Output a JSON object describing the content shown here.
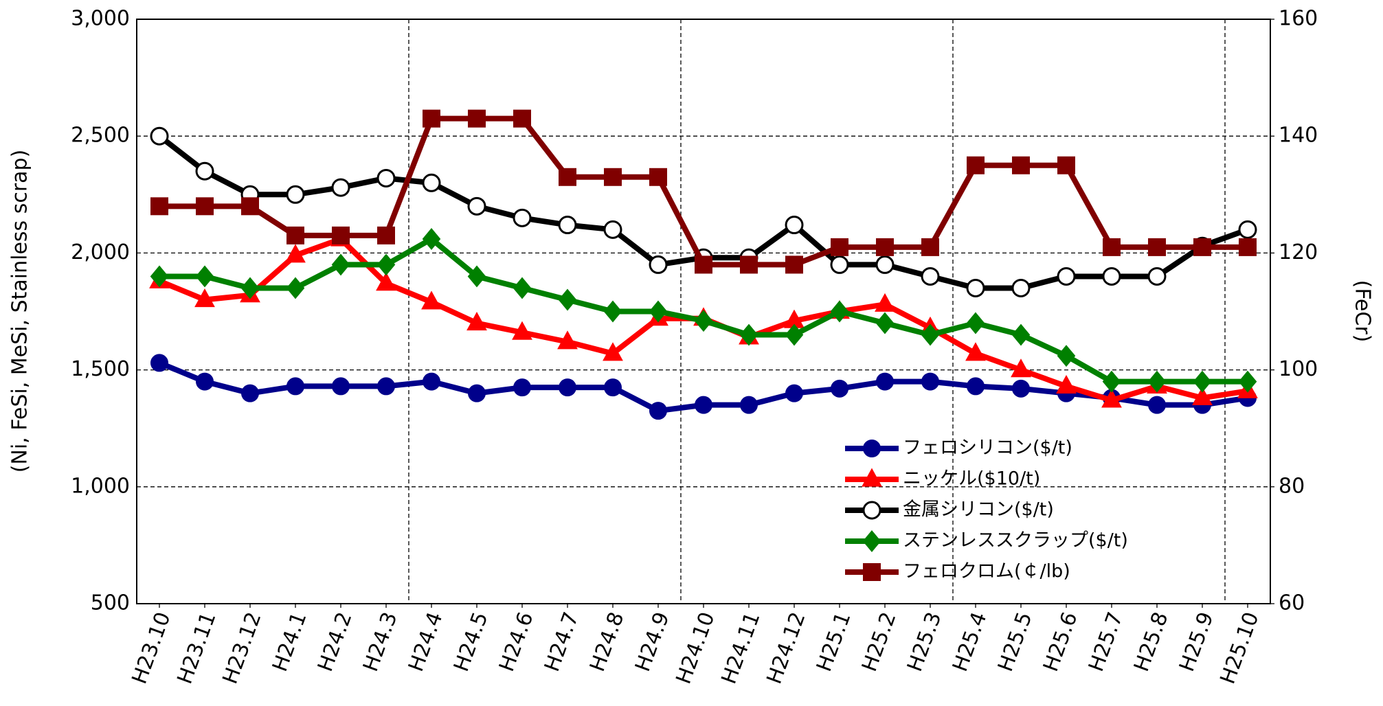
{
  "chart_data": {
    "type": "line",
    "y_label": "(Ni, FeSi, MeSi, Stainless scrap)",
    "y2_label": "(FeCr)",
    "categories": [
      "H23.10",
      "H23.11",
      "H23.12",
      "H24.1",
      "H24.2",
      "H24.3",
      "H24.4",
      "H24.5",
      "H24.6",
      "H24.7",
      "H24.8",
      "H24.9",
      "H24.10",
      "H24.11",
      "H24.12",
      "H25.1",
      "H25.2",
      "H25.3",
      "H25.4",
      "H25.5",
      "H25.6",
      "H25.7",
      "H25.8",
      "H25.9",
      "H25.10"
    ],
    "ylim": [
      500,
      3000
    ],
    "yticks": [
      500,
      {
        "value": 1000,
        "label": "1,000"
      },
      {
        "value": 1500,
        "label": "1,500"
      },
      {
        "value": 2000,
        "label": "2,000"
      },
      {
        "value": 2500,
        "label": "2,500"
      },
      {
        "value": 3000,
        "label": "3,000"
      }
    ],
    "y2lim": [
      60,
      160
    ],
    "y2ticks": [
      60,
      80,
      100,
      120,
      140,
      160
    ],
    "grid": true,
    "legend": "lower-right",
    "series": [
      {
        "name": "フェロシリコン($/t)",
        "color": "#00008b",
        "marker": "circle",
        "values": [
          1530,
          1450,
          1400,
          1430,
          1430,
          1430,
          1450,
          1400,
          1425,
          1425,
          1425,
          1325,
          1350,
          1350,
          1400,
          1420,
          1450,
          1450,
          1430,
          1420,
          1400,
          1380,
          1350,
          1350,
          1380
        ]
      },
      {
        "name": "ニッケル($10/t)",
        "color": "#ff0000",
        "marker": "triangle",
        "values": [
          1880,
          1800,
          1820,
          1990,
          2060,
          1870,
          1790,
          1700,
          1660,
          1620,
          1570,
          1720,
          1720,
          1640,
          1710,
          1750,
          1780,
          1680,
          1570,
          1500,
          1430,
          1370,
          1430,
          1380,
          1410
        ]
      },
      {
        "name": "金属シリコン($/t)",
        "color": "#000000",
        "marker": "open-circle",
        "values": [
          2500,
          2350,
          2250,
          2250,
          2280,
          2320,
          2300,
          2200,
          2150,
          2120,
          2100,
          1950,
          1980,
          1980,
          2120,
          1950,
          1950,
          1900,
          1850,
          1850,
          1900,
          1900,
          1900,
          2030,
          2100
        ]
      },
      {
        "name": "ステンレススクラップ($/t)",
        "color": "#008000",
        "marker": "diamond",
        "values": [
          1900,
          1900,
          1850,
          1850,
          1950,
          1950,
          2060,
          1900,
          1850,
          1800,
          1750,
          1750,
          1710,
          1650,
          1650,
          1750,
          1700,
          1650,
          1700,
          1650,
          1560,
          1450,
          1450,
          1450,
          1450
        ]
      },
      {
        "name": "フェロクロム(￠/lb)",
        "color": "#800000",
        "marker": "square",
        "axis": "y2",
        "values": [
          128,
          128,
          128,
          123,
          123,
          123,
          143,
          143,
          143,
          133,
          133,
          133,
          118,
          118,
          118,
          121,
          121,
          121,
          135,
          135,
          135,
          121,
          121,
          121,
          121
        ]
      }
    ]
  }
}
